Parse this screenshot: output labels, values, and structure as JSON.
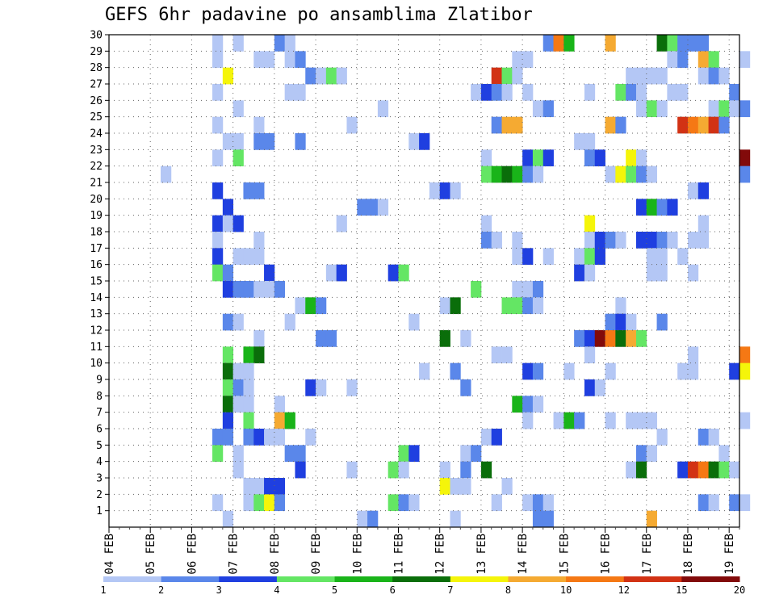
{
  "chart_data": {
    "type": "heatmap",
    "title": "GEFS 6hr padavine po ansamblima Zlatibor",
    "x_tick_labels": [
      "04 FEB",
      "05 FEB",
      "06 FEB",
      "07 FEB",
      "08 FEB",
      "09 FEB",
      "10 FEB",
      "11 FEB",
      "12 FEB",
      "13 FEB",
      "14 FEB",
      "15 FEB",
      "16 FEB",
      "17 FEB",
      "18 FEB",
      "19 FEB"
    ],
    "x_range": [
      "04 FEB 00",
      "19 FEB 06"
    ],
    "y_tick_labels": [
      "1",
      "2",
      "3",
      "4",
      "5",
      "6",
      "7",
      "8",
      "9",
      "10",
      "11",
      "12",
      "13",
      "14",
      "15",
      "16",
      "17",
      "18",
      "19",
      "20",
      "21",
      "22",
      "23",
      "24",
      "25",
      "26",
      "27",
      "28",
      "29",
      "30"
    ],
    "y_range": [
      0,
      30
    ],
    "grid": true,
    "legend_position": "bottom",
    "legend": {
      "labels": [
        "1",
        "2",
        "3",
        "4",
        "5",
        "6",
        "7",
        "8",
        "10",
        "12",
        "15",
        "20"
      ],
      "colors": [
        "#b4c7f5",
        "#5a87ea",
        "#1f3fe0",
        "#64e664",
        "#19b419",
        "#0a6e0a",
        "#f5f50a",
        "#f5aa32",
        "#f57814",
        "#d23214",
        "#820a0a"
      ]
    },
    "x_step_label": "6hr",
    "cells": [
      [
        10,
        30,
        1
      ],
      [
        12,
        30,
        1
      ],
      [
        16,
        30,
        2
      ],
      [
        17,
        30,
        1
      ],
      [
        42,
        30,
        2
      ],
      [
        43,
        30,
        9
      ],
      [
        44,
        30,
        5
      ],
      [
        48,
        30,
        8
      ],
      [
        53,
        30,
        6
      ],
      [
        54,
        30,
        4
      ],
      [
        55,
        30,
        2
      ],
      [
        56,
        30,
        2
      ],
      [
        57,
        30,
        2
      ],
      [
        10,
        29,
        1
      ],
      [
        14,
        29,
        1
      ],
      [
        15,
        29,
        1
      ],
      [
        17,
        29,
        1
      ],
      [
        18,
        29,
        2
      ],
      [
        39,
        29,
        1
      ],
      [
        40,
        29,
        1
      ],
      [
        54,
        29,
        1
      ],
      [
        55,
        29,
        2
      ],
      [
        57,
        29,
        8
      ],
      [
        58,
        29,
        4
      ],
      [
        61,
        29,
        1
      ],
      [
        11,
        28,
        7
      ],
      [
        19,
        28,
        2
      ],
      [
        20,
        28,
        1
      ],
      [
        21,
        28,
        4
      ],
      [
        22,
        28,
        1
      ],
      [
        37,
        28,
        10
      ],
      [
        38,
        28,
        4
      ],
      [
        39,
        28,
        1
      ],
      [
        50,
        28,
        1
      ],
      [
        51,
        28,
        1
      ],
      [
        52,
        28,
        1
      ],
      [
        53,
        28,
        1
      ],
      [
        57,
        28,
        1
      ],
      [
        58,
        28,
        2
      ],
      [
        59,
        28,
        1
      ],
      [
        10,
        27,
        1
      ],
      [
        17,
        27,
        1
      ],
      [
        18,
        27,
        1
      ],
      [
        35,
        27,
        1
      ],
      [
        36,
        27,
        3
      ],
      [
        37,
        27,
        2
      ],
      [
        38,
        27,
        1
      ],
      [
        40,
        27,
        1
      ],
      [
        46,
        27,
        1
      ],
      [
        49,
        27,
        4
      ],
      [
        50,
        27,
        2
      ],
      [
        51,
        27,
        1
      ],
      [
        54,
        27,
        1
      ],
      [
        55,
        27,
        1
      ],
      [
        60,
        27,
        2
      ],
      [
        12,
        26,
        1
      ],
      [
        26,
        26,
        1
      ],
      [
        41,
        26,
        1
      ],
      [
        42,
        26,
        2
      ],
      [
        51,
        26,
        1
      ],
      [
        52,
        26,
        4
      ],
      [
        53,
        26,
        1
      ],
      [
        58,
        26,
        1
      ],
      [
        59,
        26,
        4
      ],
      [
        60,
        26,
        1
      ],
      [
        61,
        26,
        2
      ],
      [
        10,
        25,
        1
      ],
      [
        14,
        25,
        1
      ],
      [
        23,
        25,
        1
      ],
      [
        37,
        25,
        2
      ],
      [
        38,
        25,
        8
      ],
      [
        39,
        25,
        8
      ],
      [
        48,
        25,
        8
      ],
      [
        49,
        25,
        2
      ],
      [
        55,
        25,
        10
      ],
      [
        56,
        25,
        9
      ],
      [
        57,
        25,
        8
      ],
      [
        58,
        25,
        10
      ],
      [
        59,
        25,
        2
      ],
      [
        11,
        24,
        1
      ],
      [
        12,
        24,
        1
      ],
      [
        14,
        24,
        2
      ],
      [
        15,
        24,
        2
      ],
      [
        18,
        24,
        2
      ],
      [
        29,
        24,
        1
      ],
      [
        30,
        24,
        3
      ],
      [
        45,
        24,
        1
      ],
      [
        46,
        24,
        1
      ],
      [
        10,
        23,
        1
      ],
      [
        12,
        23,
        4
      ],
      [
        36,
        23,
        1
      ],
      [
        40,
        23,
        3
      ],
      [
        41,
        23,
        4
      ],
      [
        42,
        23,
        3
      ],
      [
        46,
        23,
        2
      ],
      [
        47,
        23,
        3
      ],
      [
        50,
        23,
        7
      ],
      [
        51,
        23,
        1
      ],
      [
        61,
        23,
        11
      ],
      [
        5,
        22,
        1
      ],
      [
        36,
        22,
        4
      ],
      [
        37,
        22,
        5
      ],
      [
        38,
        22,
        6
      ],
      [
        39,
        22,
        5
      ],
      [
        40,
        22,
        2
      ],
      [
        41,
        22,
        1
      ],
      [
        48,
        22,
        1
      ],
      [
        49,
        22,
        7
      ],
      [
        50,
        22,
        4
      ],
      [
        51,
        22,
        2
      ],
      [
        52,
        22,
        1
      ],
      [
        61,
        22,
        2
      ],
      [
        10,
        21,
        3
      ],
      [
        13,
        21,
        2
      ],
      [
        14,
        21,
        2
      ],
      [
        31,
        21,
        1
      ],
      [
        32,
        21,
        3
      ],
      [
        33,
        21,
        1
      ],
      [
        56,
        21,
        1
      ],
      [
        57,
        21,
        3
      ],
      [
        11,
        20,
        3
      ],
      [
        24,
        20,
        2
      ],
      [
        25,
        20,
        2
      ],
      [
        26,
        20,
        1
      ],
      [
        51,
        20,
        3
      ],
      [
        52,
        20,
        5
      ],
      [
        53,
        20,
        2
      ],
      [
        54,
        20,
        3
      ],
      [
        10,
        19,
        3
      ],
      [
        11,
        19,
        1
      ],
      [
        12,
        19,
        3
      ],
      [
        22,
        19,
        1
      ],
      [
        36,
        19,
        1
      ],
      [
        46,
        19,
        7
      ],
      [
        57,
        19,
        1
      ],
      [
        10,
        18,
        1
      ],
      [
        14,
        18,
        1
      ],
      [
        36,
        18,
        2
      ],
      [
        37,
        18,
        1
      ],
      [
        39,
        18,
        1
      ],
      [
        46,
        18,
        1
      ],
      [
        47,
        18,
        3
      ],
      [
        48,
        18,
        2
      ],
      [
        49,
        18,
        1
      ],
      [
        51,
        18,
        3
      ],
      [
        52,
        18,
        3
      ],
      [
        53,
        18,
        2
      ],
      [
        54,
        18,
        1
      ],
      [
        56,
        18,
        1
      ],
      [
        57,
        18,
        1
      ],
      [
        10,
        17,
        3
      ],
      [
        12,
        17,
        1
      ],
      [
        13,
        17,
        1
      ],
      [
        14,
        17,
        1
      ],
      [
        39,
        17,
        1
      ],
      [
        40,
        17,
        3
      ],
      [
        42,
        17,
        1
      ],
      [
        45,
        17,
        1
      ],
      [
        46,
        17,
        4
      ],
      [
        47,
        17,
        3
      ],
      [
        52,
        17,
        1
      ],
      [
        53,
        17,
        1
      ],
      [
        55,
        17,
        1
      ],
      [
        10,
        16,
        4
      ],
      [
        11,
        16,
        2
      ],
      [
        15,
        16,
        3
      ],
      [
        21,
        16,
        1
      ],
      [
        22,
        16,
        3
      ],
      [
        27,
        16,
        3
      ],
      [
        28,
        16,
        4
      ],
      [
        45,
        16,
        3
      ],
      [
        46,
        16,
        1
      ],
      [
        52,
        16,
        1
      ],
      [
        53,
        16,
        1
      ],
      [
        56,
        16,
        1
      ],
      [
        11,
        15,
        3
      ],
      [
        12,
        15,
        2
      ],
      [
        13,
        15,
        2
      ],
      [
        14,
        15,
        1
      ],
      [
        15,
        15,
        1
      ],
      [
        16,
        15,
        2
      ],
      [
        35,
        15,
        4
      ],
      [
        39,
        15,
        1
      ],
      [
        40,
        15,
        1
      ],
      [
        41,
        15,
        2
      ],
      [
        18,
        14,
        1
      ],
      [
        19,
        14,
        5
      ],
      [
        20,
        14,
        2
      ],
      [
        32,
        14,
        1
      ],
      [
        33,
        14,
        6
      ],
      [
        38,
        14,
        4
      ],
      [
        39,
        14,
        4
      ],
      [
        40,
        14,
        2
      ],
      [
        41,
        14,
        1
      ],
      [
        49,
        14,
        1
      ],
      [
        11,
        13,
        2
      ],
      [
        12,
        13,
        1
      ],
      [
        17,
        13,
        1
      ],
      [
        29,
        13,
        1
      ],
      [
        48,
        13,
        2
      ],
      [
        49,
        13,
        3
      ],
      [
        50,
        13,
        1
      ],
      [
        53,
        13,
        2
      ],
      [
        14,
        12,
        1
      ],
      [
        20,
        12,
        2
      ],
      [
        21,
        12,
        2
      ],
      [
        32,
        12,
        6
      ],
      [
        34,
        12,
        1
      ],
      [
        45,
        12,
        2
      ],
      [
        46,
        12,
        3
      ],
      [
        47,
        12,
        11
      ],
      [
        48,
        12,
        9
      ],
      [
        49,
        12,
        6
      ],
      [
        50,
        12,
        8
      ],
      [
        51,
        12,
        4
      ],
      [
        11,
        11,
        4
      ],
      [
        13,
        11,
        5
      ],
      [
        14,
        11,
        6
      ],
      [
        37,
        11,
        1
      ],
      [
        38,
        11,
        1
      ],
      [
        46,
        11,
        1
      ],
      [
        56,
        11,
        1
      ],
      [
        61,
        11,
        9
      ],
      [
        11,
        10,
        6
      ],
      [
        12,
        10,
        1
      ],
      [
        13,
        10,
        1
      ],
      [
        30,
        10,
        1
      ],
      [
        33,
        10,
        2
      ],
      [
        40,
        10,
        3
      ],
      [
        41,
        10,
        2
      ],
      [
        44,
        10,
        1
      ],
      [
        48,
        10,
        1
      ],
      [
        55,
        10,
        1
      ],
      [
        56,
        10,
        1
      ],
      [
        60,
        10,
        3
      ],
      [
        61,
        10,
        7
      ],
      [
        11,
        9,
        4
      ],
      [
        12,
        9,
        2
      ],
      [
        13,
        9,
        1
      ],
      [
        19,
        9,
        3
      ],
      [
        20,
        9,
        1
      ],
      [
        23,
        9,
        1
      ],
      [
        34,
        9,
        2
      ],
      [
        46,
        9,
        3
      ],
      [
        47,
        9,
        1
      ],
      [
        11,
        8,
        6
      ],
      [
        12,
        8,
        1
      ],
      [
        13,
        8,
        1
      ],
      [
        16,
        8,
        1
      ],
      [
        39,
        8,
        5
      ],
      [
        40,
        8,
        2
      ],
      [
        41,
        8,
        1
      ],
      [
        11,
        7,
        3
      ],
      [
        13,
        7,
        4
      ],
      [
        16,
        7,
        8
      ],
      [
        17,
        7,
        5
      ],
      [
        40,
        7,
        1
      ],
      [
        43,
        7,
        1
      ],
      [
        44,
        7,
        5
      ],
      [
        45,
        7,
        2
      ],
      [
        48,
        7,
        1
      ],
      [
        50,
        7,
        1
      ],
      [
        51,
        7,
        1
      ],
      [
        52,
        7,
        1
      ],
      [
        61,
        7,
        1
      ],
      [
        10,
        6,
        2
      ],
      [
        11,
        6,
        2
      ],
      [
        13,
        6,
        2
      ],
      [
        14,
        6,
        3
      ],
      [
        15,
        6,
        1
      ],
      [
        16,
        6,
        1
      ],
      [
        19,
        6,
        1
      ],
      [
        36,
        6,
        1
      ],
      [
        37,
        6,
        3
      ],
      [
        53,
        6,
        1
      ],
      [
        57,
        6,
        2
      ],
      [
        58,
        6,
        1
      ],
      [
        10,
        5,
        4
      ],
      [
        12,
        5,
        1
      ],
      [
        17,
        5,
        2
      ],
      [
        18,
        5,
        2
      ],
      [
        28,
        5,
        4
      ],
      [
        29,
        5,
        3
      ],
      [
        34,
        5,
        1
      ],
      [
        35,
        5,
        2
      ],
      [
        51,
        5,
        2
      ],
      [
        52,
        5,
        1
      ],
      [
        59,
        5,
        1
      ],
      [
        12,
        4,
        1
      ],
      [
        18,
        4,
        3
      ],
      [
        23,
        4,
        1
      ],
      [
        27,
        4,
        4
      ],
      [
        28,
        4,
        1
      ],
      [
        32,
        4,
        1
      ],
      [
        34,
        4,
        2
      ],
      [
        36,
        4,
        6
      ],
      [
        50,
        4,
        1
      ],
      [
        51,
        4,
        6
      ],
      [
        55,
        4,
        3
      ],
      [
        56,
        4,
        10
      ],
      [
        57,
        4,
        9
      ],
      [
        58,
        4,
        6
      ],
      [
        59,
        4,
        4
      ],
      [
        60,
        4,
        1
      ],
      [
        13,
        3,
        1
      ],
      [
        14,
        3,
        1
      ],
      [
        15,
        3,
        3
      ],
      [
        16,
        3,
        3
      ],
      [
        32,
        3,
        7
      ],
      [
        33,
        3,
        1
      ],
      [
        34,
        3,
        1
      ],
      [
        38,
        3,
        1
      ],
      [
        10,
        2,
        1
      ],
      [
        13,
        2,
        1
      ],
      [
        14,
        2,
        4
      ],
      [
        15,
        2,
        7
      ],
      [
        16,
        2,
        2
      ],
      [
        27,
        2,
        4
      ],
      [
        28,
        2,
        2
      ],
      [
        29,
        2,
        1
      ],
      [
        37,
        2,
        1
      ],
      [
        40,
        2,
        1
      ],
      [
        41,
        2,
        2
      ],
      [
        42,
        2,
        1
      ],
      [
        57,
        2,
        2
      ],
      [
        58,
        2,
        1
      ],
      [
        60,
        2,
        2
      ],
      [
        61,
        2,
        1
      ],
      [
        11,
        1,
        1
      ],
      [
        24,
        1,
        1
      ],
      [
        25,
        1,
        2
      ],
      [
        33,
        1,
        1
      ],
      [
        41,
        1,
        2
      ],
      [
        42,
        1,
        2
      ],
      [
        52,
        1,
        8
      ]
    ]
  }
}
